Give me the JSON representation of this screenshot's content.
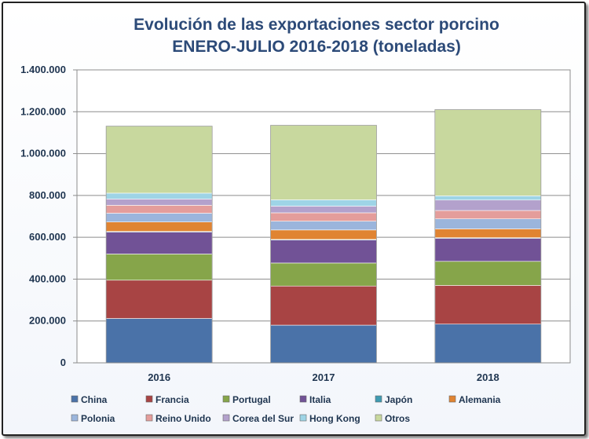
{
  "chart_data": {
    "type": "bar",
    "stacked": true,
    "title": "Evolución de las exportaciones sector porcino",
    "subtitle": "ENERO-JULIO 2016-2018 (toneladas)",
    "categories": [
      "2016",
      "2017",
      "2018"
    ],
    "ylim": [
      0,
      1400000
    ],
    "y_ticks": [
      {
        "value": 0,
        "label": "0"
      },
      {
        "value": 200000,
        "label": "200.000"
      },
      {
        "value": 400000,
        "label": "400.000"
      },
      {
        "value": 600000,
        "label": "600.000"
      },
      {
        "value": 800000,
        "label": "800.000"
      },
      {
        "value": 1000000,
        "label": "1.000.000"
      },
      {
        "value": 1200000,
        "label": "1.200.000"
      },
      {
        "value": 1400000,
        "label": "1.400.000"
      }
    ],
    "grid": true,
    "legend_position": "bottom",
    "series": [
      {
        "name": "China",
        "color": "#4a72a8",
        "values": [
          212000,
          180000,
          185000
        ]
      },
      {
        "name": "Francia",
        "color": "#a84444",
        "values": [
          183000,
          187000,
          185000
        ]
      },
      {
        "name": "Portugal",
        "color": "#86a54a",
        "values": [
          125000,
          110000,
          115000
        ]
      },
      {
        "name": "Italia",
        "color": "#715296",
        "values": [
          105000,
          110000,
          110000
        ]
      },
      {
        "name": "Japón",
        "color": "#3f9bb2",
        "values": [
          3000,
          3000,
          3000
        ]
      },
      {
        "name": "Alemania",
        "color": "#e08432",
        "values": [
          45000,
          45000,
          42000
        ]
      },
      {
        "name": "Polonia",
        "color": "#9bb5dc",
        "values": [
          42000,
          42000,
          48000
        ]
      },
      {
        "name": "Reino Unido",
        "color": "#e49d9b",
        "values": [
          38000,
          40000,
          40000
        ]
      },
      {
        "name": "Corea del Sur",
        "color": "#b3a1cc",
        "values": [
          30000,
          32000,
          50000
        ]
      },
      {
        "name": "Hong Kong",
        "color": "#9ed4e6",
        "values": [
          28000,
          30000,
          20000
        ]
      },
      {
        "name": "Otros",
        "color": "#c8d89e",
        "values": [
          320000,
          356000,
          412000
        ]
      }
    ]
  }
}
